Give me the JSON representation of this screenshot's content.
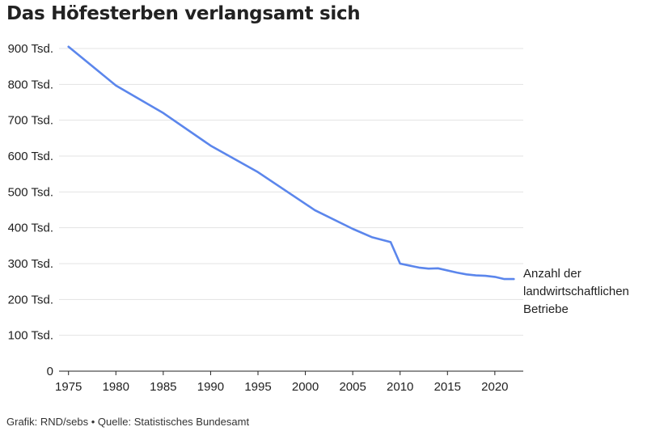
{
  "chart_data": {
    "type": "line",
    "title": "Das Höfesterben verlangsamt sich",
    "xlabel": "",
    "ylabel": "",
    "xlim": [
      1974,
      2023
    ],
    "ylim": [
      0,
      900
    ],
    "y_ticks": [
      0,
      100,
      200,
      300,
      400,
      500,
      600,
      700,
      800,
      900
    ],
    "y_tick_labels": [
      "0",
      "100 Tsd.",
      "200 Tsd.",
      "300 Tsd.",
      "400 Tsd.",
      "500 Tsd.",
      "600 Tsd.",
      "700 Tsd.",
      "800 Tsd.",
      "900 Tsd."
    ],
    "x_ticks": [
      1975,
      1980,
      1985,
      1990,
      1995,
      2000,
      2005,
      2010,
      2015,
      2020
    ],
    "x_tick_labels": [
      "1975",
      "1980",
      "1985",
      "1990",
      "1995",
      "2000",
      "2005",
      "2010",
      "2015",
      "2020"
    ],
    "grid": "horizontal",
    "series": [
      {
        "label_lines": [
          "Anzahl der",
          "landwirtschaftlichen",
          "Betriebe"
        ],
        "color": "#5b86ec",
        "x": [
          1975,
          1980,
          1985,
          1990,
          1995,
          2001,
          2005,
          2007,
          2009,
          2010,
          2012,
          2013,
          2014,
          2016,
          2017,
          2018,
          2019,
          2020,
          2021,
          2022
        ],
        "y": [
          905,
          797,
          720,
          629,
          555,
          449,
          397,
          374,
          360,
          300,
          289,
          286,
          287,
          275,
          270,
          267,
          266,
          263,
          257,
          257
        ]
      }
    ]
  },
  "footer": {
    "source": "Grafik: RND/sebs • Quelle: Statistisches Bundesamt"
  }
}
